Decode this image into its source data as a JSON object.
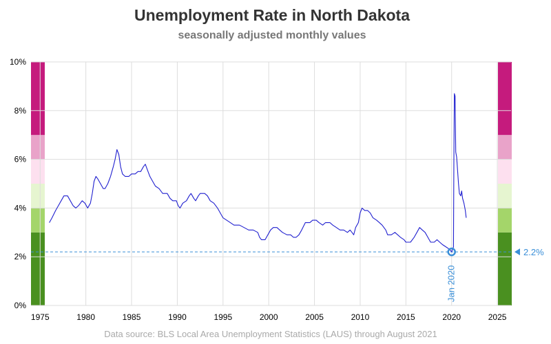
{
  "chart_data": {
    "type": "line",
    "title": "Unemployment Rate in North Dakota",
    "subtitle": "seasonally adjusted monthly values",
    "source": "Data source: BLS Local Area Unemployment Statistics (LAUS) through August 2021",
    "x_ticks": [
      "1975",
      "1980",
      "1985",
      "1990",
      "1995",
      "2000",
      "2005",
      "2010",
      "2015",
      "2020",
      "2025"
    ],
    "y_ticks": [
      "0%",
      "2%",
      "4%",
      "6%",
      "8%",
      "10%"
    ],
    "xlim": [
      1974,
      2026.5
    ],
    "ylim": [
      0,
      10
    ],
    "grid": true,
    "line_color": "#1f1fcf",
    "reference": {
      "label": "Jan 2020",
      "x": 2020.0,
      "y": 2.2,
      "value_label": "2.2%",
      "color": "#3a8fd8"
    },
    "color_bands": [
      {
        "from": 0,
        "to": 3,
        "color": "#4a9020"
      },
      {
        "from": 3,
        "to": 4,
        "color": "#a4d56a"
      },
      {
        "from": 4,
        "to": 5,
        "color": "#e6f5d0"
      },
      {
        "from": 5,
        "to": 6,
        "color": "#fde0ef"
      },
      {
        "from": 6,
        "to": 7,
        "color": "#e9a3c9"
      },
      {
        "from": 7,
        "to": 10,
        "color": "#c51b7d"
      }
    ],
    "series": [
      {
        "points": [
          [
            1976.0,
            3.4
          ],
          [
            1976.3,
            3.6
          ],
          [
            1976.7,
            3.9
          ],
          [
            1977.0,
            4.1
          ],
          [
            1977.3,
            4.3
          ],
          [
            1977.6,
            4.5
          ],
          [
            1978.0,
            4.5
          ],
          [
            1978.3,
            4.3
          ],
          [
            1978.6,
            4.1
          ],
          [
            1978.9,
            4.0
          ],
          [
            1979.2,
            4.1
          ],
          [
            1979.6,
            4.3
          ],
          [
            1979.9,
            4.2
          ],
          [
            1980.2,
            4.0
          ],
          [
            1980.5,
            4.2
          ],
          [
            1980.7,
            4.6
          ],
          [
            1980.9,
            5.1
          ],
          [
            1981.1,
            5.3
          ],
          [
            1981.3,
            5.2
          ],
          [
            1981.6,
            5.0
          ],
          [
            1981.9,
            4.8
          ],
          [
            1982.1,
            4.8
          ],
          [
            1982.4,
            5.0
          ],
          [
            1982.7,
            5.3
          ],
          [
            1983.0,
            5.7
          ],
          [
            1983.2,
            6.0
          ],
          [
            1983.4,
            6.4
          ],
          [
            1983.6,
            6.2
          ],
          [
            1983.8,
            5.7
          ],
          [
            1984.0,
            5.4
          ],
          [
            1984.3,
            5.3
          ],
          [
            1984.7,
            5.3
          ],
          [
            1985.0,
            5.4
          ],
          [
            1985.4,
            5.4
          ],
          [
            1985.7,
            5.5
          ],
          [
            1986.0,
            5.5
          ],
          [
            1986.3,
            5.7
          ],
          [
            1986.5,
            5.8
          ],
          [
            1986.7,
            5.6
          ],
          [
            1987.0,
            5.3
          ],
          [
            1987.3,
            5.1
          ],
          [
            1987.6,
            4.9
          ],
          [
            1988.0,
            4.8
          ],
          [
            1988.4,
            4.6
          ],
          [
            1988.9,
            4.6
          ],
          [
            1989.2,
            4.4
          ],
          [
            1989.5,
            4.3
          ],
          [
            1989.9,
            4.3
          ],
          [
            1990.1,
            4.1
          ],
          [
            1990.3,
            4.0
          ],
          [
            1990.6,
            4.2
          ],
          [
            1991.0,
            4.3
          ],
          [
            1991.3,
            4.5
          ],
          [
            1991.5,
            4.6
          ],
          [
            1991.8,
            4.4
          ],
          [
            1992.0,
            4.3
          ],
          [
            1992.3,
            4.5
          ],
          [
            1992.5,
            4.6
          ],
          [
            1993.0,
            4.6
          ],
          [
            1993.3,
            4.5
          ],
          [
            1993.6,
            4.3
          ],
          [
            1994.0,
            4.2
          ],
          [
            1994.4,
            4.0
          ],
          [
            1994.7,
            3.8
          ],
          [
            1995.0,
            3.6
          ],
          [
            1995.4,
            3.5
          ],
          [
            1995.8,
            3.4
          ],
          [
            1996.2,
            3.3
          ],
          [
            1996.8,
            3.3
          ],
          [
            1997.3,
            3.2
          ],
          [
            1997.8,
            3.1
          ],
          [
            1998.3,
            3.1
          ],
          [
            1998.8,
            3.0
          ],
          [
            1999.0,
            2.8
          ],
          [
            1999.2,
            2.7
          ],
          [
            1999.6,
            2.7
          ],
          [
            1999.9,
            2.9
          ],
          [
            2000.2,
            3.1
          ],
          [
            2000.5,
            3.2
          ],
          [
            2000.9,
            3.2
          ],
          [
            2001.2,
            3.1
          ],
          [
            2001.5,
            3.0
          ],
          [
            2002.0,
            2.9
          ],
          [
            2002.4,
            2.9
          ],
          [
            2002.7,
            2.8
          ],
          [
            2003.0,
            2.8
          ],
          [
            2003.3,
            2.9
          ],
          [
            2003.6,
            3.1
          ],
          [
            2004.0,
            3.4
          ],
          [
            2004.5,
            3.4
          ],
          [
            2004.8,
            3.5
          ],
          [
            2005.2,
            3.5
          ],
          [
            2005.5,
            3.4
          ],
          [
            2005.9,
            3.3
          ],
          [
            2006.2,
            3.4
          ],
          [
            2006.7,
            3.4
          ],
          [
            2007.0,
            3.3
          ],
          [
            2007.4,
            3.2
          ],
          [
            2007.8,
            3.1
          ],
          [
            2008.2,
            3.1
          ],
          [
            2008.6,
            3.0
          ],
          [
            2008.9,
            3.1
          ],
          [
            2009.1,
            3.0
          ],
          [
            2009.3,
            2.9
          ],
          [
            2009.5,
            3.2
          ],
          [
            2009.8,
            3.4
          ],
          [
            2010.0,
            3.8
          ],
          [
            2010.2,
            4.0
          ],
          [
            2010.5,
            3.9
          ],
          [
            2010.8,
            3.9
          ],
          [
            2011.1,
            3.8
          ],
          [
            2011.4,
            3.6
          ],
          [
            2011.8,
            3.5
          ],
          [
            2012.1,
            3.4
          ],
          [
            2012.4,
            3.3
          ],
          [
            2012.8,
            3.1
          ],
          [
            2013.0,
            2.9
          ],
          [
            2013.4,
            2.9
          ],
          [
            2013.8,
            3.0
          ],
          [
            2014.1,
            2.9
          ],
          [
            2014.4,
            2.8
          ],
          [
            2014.8,
            2.7
          ],
          [
            2015.0,
            2.6
          ],
          [
            2015.5,
            2.6
          ],
          [
            2015.9,
            2.8
          ],
          [
            2016.2,
            3.0
          ],
          [
            2016.5,
            3.2
          ],
          [
            2016.8,
            3.1
          ],
          [
            2017.1,
            3.0
          ],
          [
            2017.4,
            2.8
          ],
          [
            2017.7,
            2.6
          ],
          [
            2018.1,
            2.6
          ],
          [
            2018.4,
            2.7
          ],
          [
            2018.7,
            2.6
          ],
          [
            2019.0,
            2.5
          ],
          [
            2019.4,
            2.4
          ],
          [
            2019.8,
            2.3
          ],
          [
            2020.0,
            2.2
          ],
          [
            2020.1,
            2.3
          ],
          [
            2020.2,
            2.4
          ],
          [
            2020.25,
            6.0
          ],
          [
            2020.3,
            8.7
          ],
          [
            2020.38,
            8.6
          ],
          [
            2020.45,
            6.3
          ],
          [
            2020.55,
            6.1
          ],
          [
            2020.75,
            5.0
          ],
          [
            2020.85,
            4.6
          ],
          [
            2021.0,
            4.5
          ],
          [
            2021.1,
            4.7
          ],
          [
            2021.2,
            4.4
          ],
          [
            2021.35,
            4.2
          ],
          [
            2021.5,
            3.9
          ],
          [
            2021.6,
            3.6
          ]
        ]
      }
    ]
  }
}
